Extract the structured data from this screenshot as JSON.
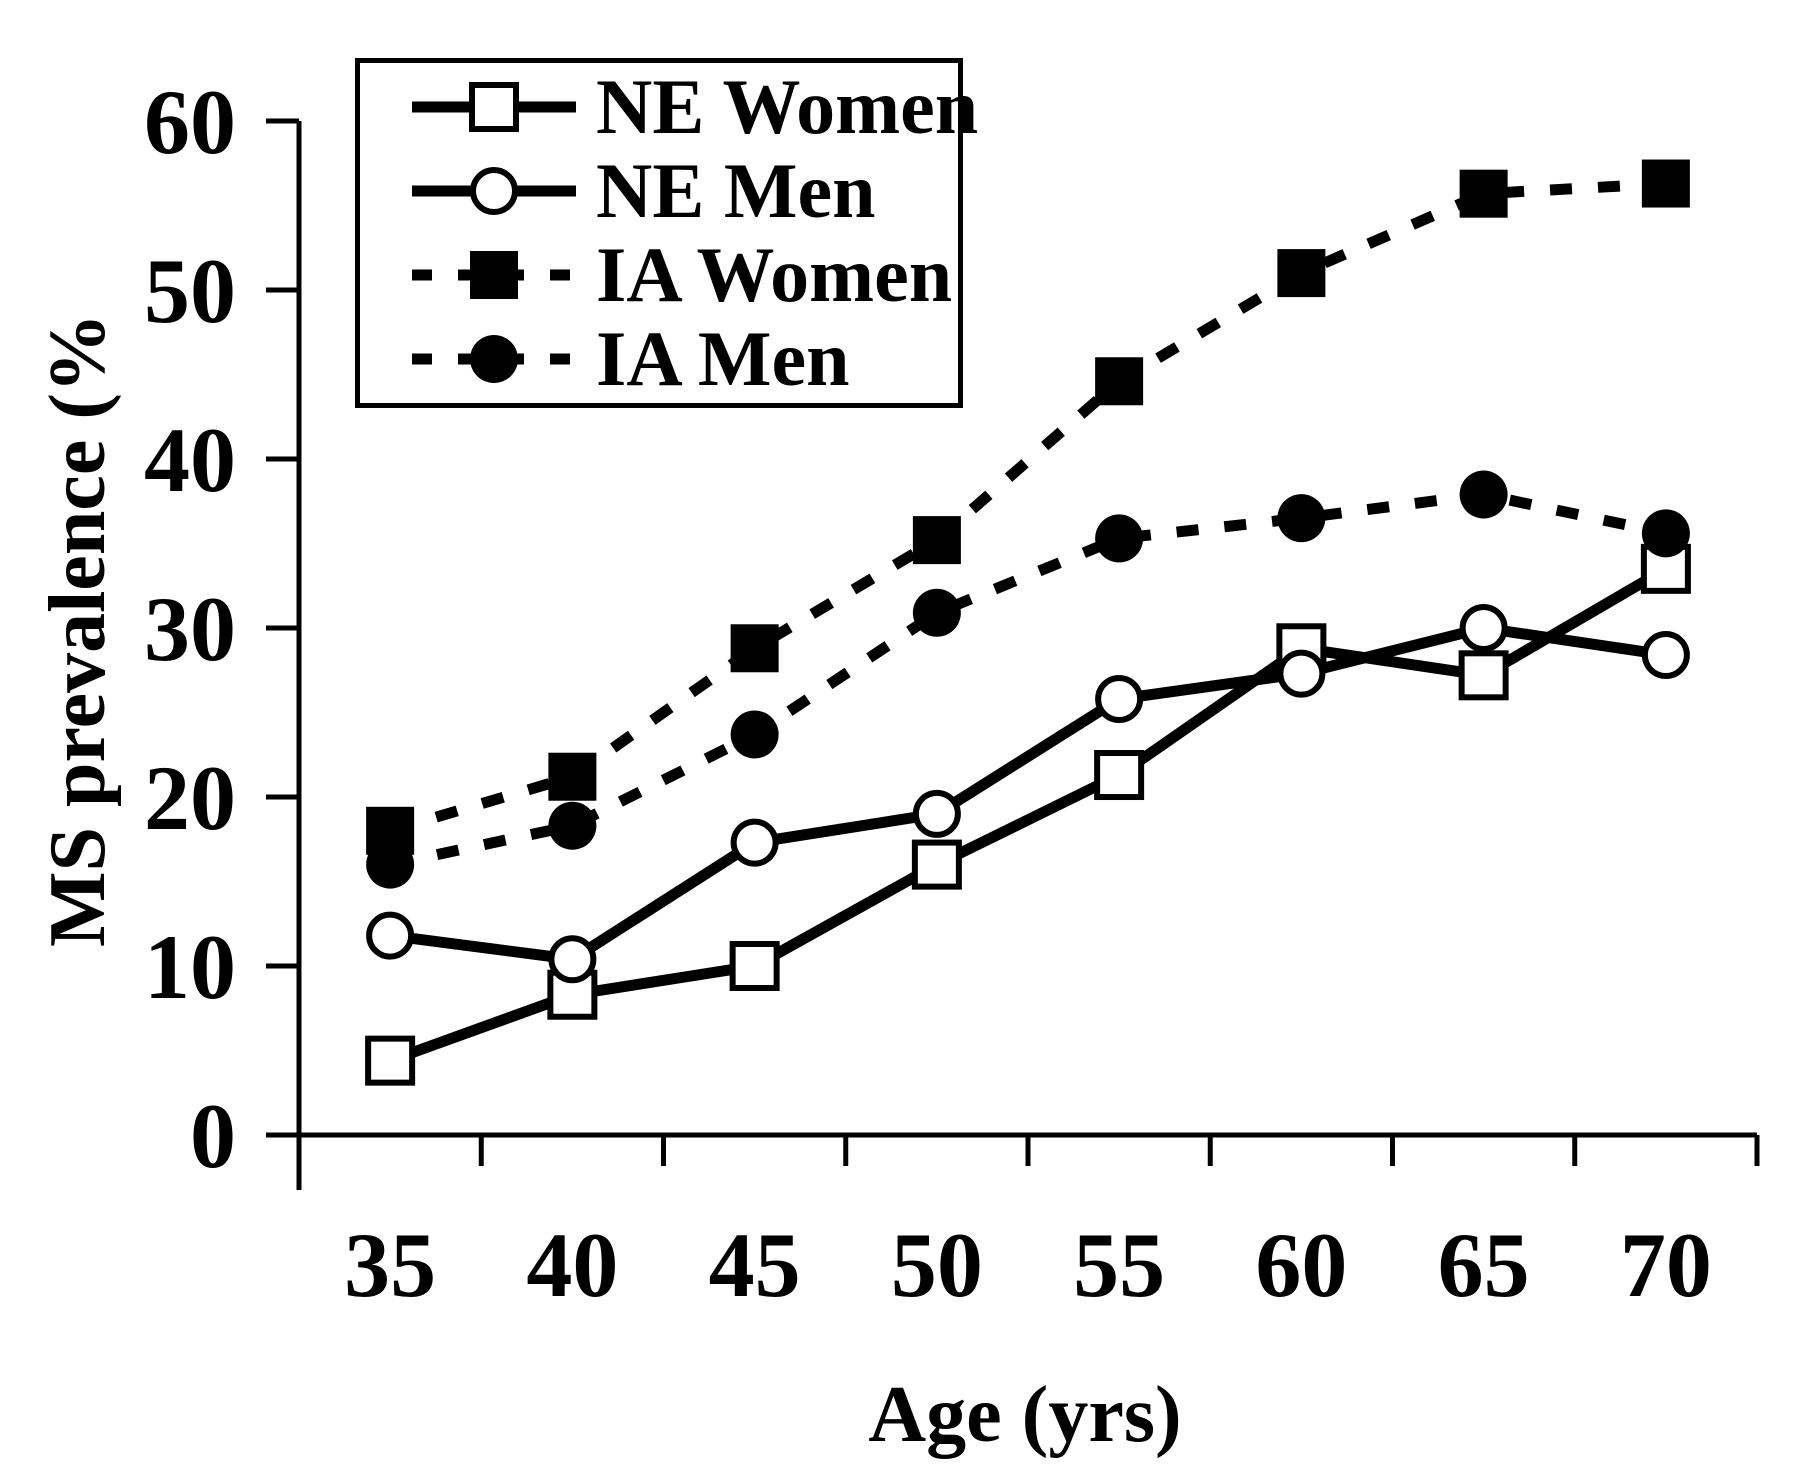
{
  "figure": {
    "background": "#ffffff",
    "ink": "#000000"
  },
  "chart_data": {
    "type": "line",
    "xlabel": "Age (yrs)",
    "ylabel": "MS prevalence (%",
    "x_categories": [
      "35",
      "40",
      "45",
      "50",
      "55",
      "60",
      "65",
      "70"
    ],
    "y_ticks": [
      0,
      10,
      20,
      30,
      40,
      50,
      60
    ],
    "ylim": [
      0,
      60
    ],
    "grid": false,
    "legend_position": "top-left",
    "layout_hints": {
      "category_labels_between_ticks": true,
      "boundary_tick_count": 9
    },
    "series": [
      {
        "name": "NE Women",
        "line": "solid",
        "marker": "open-square",
        "values": [
          4.4,
          8.3,
          10.0,
          16.0,
          21.3,
          28.8,
          27.2,
          33.5
        ]
      },
      {
        "name": "NE Men",
        "line": "solid",
        "marker": "open-circle",
        "values": [
          11.8,
          10.4,
          17.3,
          19.0,
          25.8,
          27.3,
          30.0,
          28.4
        ]
      },
      {
        "name": "IA Women",
        "line": "dashed",
        "marker": "filled-square",
        "values": [
          18.0,
          21.2,
          28.8,
          35.2,
          44.6,
          51.0,
          55.7,
          56.3
        ]
      },
      {
        "name": "IA Men",
        "line": "dashed",
        "marker": "filled-circle",
        "values": [
          16.0,
          18.3,
          23.7,
          30.9,
          35.3,
          36.5,
          37.9,
          35.6
        ]
      }
    ]
  }
}
